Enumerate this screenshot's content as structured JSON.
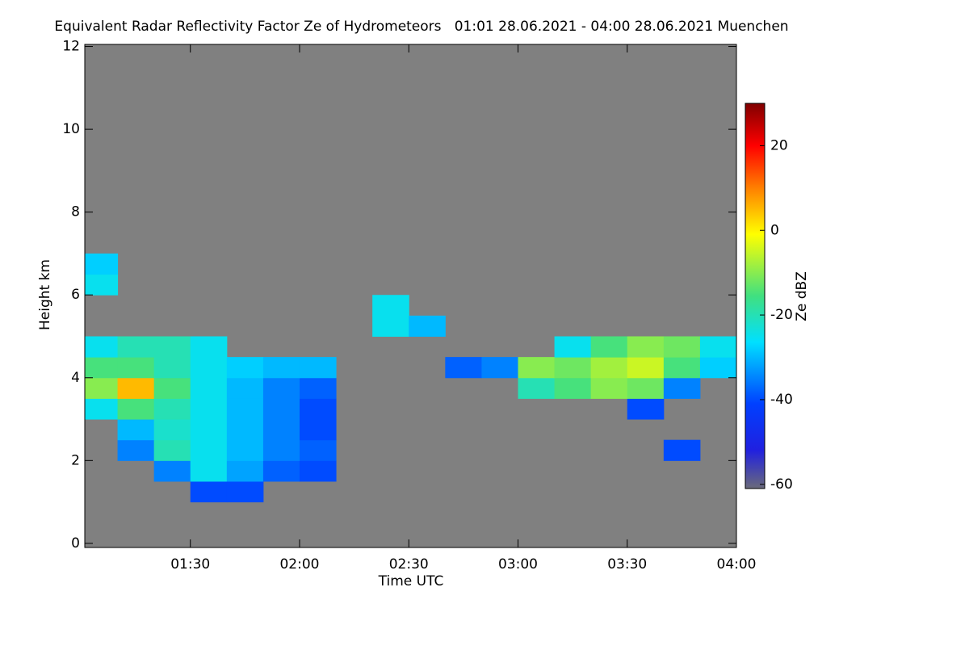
{
  "chart_data": {
    "type": "heatmap",
    "title": "Equivalent Radar Reflectivity Factor Ze of Hydrometeors   01:01 28.06.2021 - 04:00 28.06.2021 Muenchen",
    "xlabel": "Time UTC",
    "ylabel": "Height km",
    "colorbar_label": "Ze dBZ",
    "background_color": "#808080",
    "x": [
      65,
      75,
      85,
      95,
      105,
      115,
      125,
      135,
      145,
      155,
      165,
      175,
      185,
      195,
      205,
      215,
      225,
      235
    ],
    "y": [
      0.25,
      0.75,
      1.25,
      1.75,
      2.25,
      2.75,
      3.25,
      3.75,
      4.25,
      4.75,
      5.25,
      5.75,
      6.25,
      6.75
    ],
    "z": [
      [
        null,
        null,
        null,
        null,
        null,
        null,
        null,
        null,
        null,
        null,
        null,
        null,
        null,
        null,
        null,
        null,
        null,
        null
      ],
      [
        null,
        null,
        null,
        null,
        null,
        null,
        null,
        null,
        null,
        null,
        null,
        null,
        null,
        null,
        null,
        null,
        null,
        null
      ],
      [
        null,
        null,
        null,
        -40,
        -40,
        null,
        null,
        null,
        null,
        null,
        null,
        null,
        null,
        null,
        null,
        null,
        null,
        null
      ],
      [
        null,
        null,
        -35,
        -25,
        -32,
        -38,
        -40,
        null,
        null,
        null,
        null,
        null,
        null,
        null,
        null,
        null,
        null,
        null
      ],
      [
        null,
        -35,
        -20,
        -25,
        -30,
        -35,
        -38,
        null,
        null,
        null,
        null,
        null,
        null,
        null,
        null,
        null,
        -40,
        null
      ],
      [
        null,
        -30,
        -22,
        -25,
        -30,
        -35,
        -40,
        null,
        null,
        null,
        null,
        null,
        null,
        null,
        null,
        null,
        null,
        null
      ],
      [
        -25,
        -15,
        -20,
        -25,
        -30,
        -35,
        -40,
        null,
        null,
        null,
        null,
        null,
        null,
        null,
        null,
        -40,
        null,
        null
      ],
      [
        -10,
        5,
        -15,
        -25,
        -30,
        -35,
        -38,
        null,
        null,
        null,
        null,
        null,
        -20,
        -15,
        -10,
        -12,
        -35,
        null
      ],
      [
        -15,
        -15,
        -20,
        -25,
        -28,
        -30,
        -30,
        null,
        null,
        null,
        -38,
        -35,
        -10,
        -12,
        -8,
        -5,
        -15,
        -28
      ],
      [
        -25,
        -20,
        -20,
        -25,
        null,
        null,
        null,
        null,
        null,
        null,
        null,
        null,
        null,
        -25,
        -15,
        -10,
        -12,
        -25
      ],
      [
        null,
        null,
        null,
        null,
        null,
        null,
        null,
        null,
        -25,
        -30,
        null,
        null,
        null,
        null,
        null,
        null,
        null,
        null
      ],
      [
        null,
        null,
        null,
        null,
        null,
        null,
        null,
        null,
        -25,
        null,
        null,
        null,
        null,
        null,
        null,
        null,
        null,
        null
      ],
      [
        -25,
        null,
        null,
        null,
        null,
        null,
        null,
        null,
        null,
        null,
        null,
        null,
        null,
        null,
        null,
        null,
        null,
        null
      ],
      [
        -28,
        null,
        null,
        null,
        null,
        null,
        null,
        null,
        null,
        null,
        null,
        null,
        null,
        null,
        null,
        null,
        null,
        null
      ]
    ],
    "xlim": [
      61,
      240
    ],
    "xticks": [
      {
        "value": 90,
        "label": "01:30"
      },
      {
        "value": 120,
        "label": "02:00"
      },
      {
        "value": 150,
        "label": "02:30"
      },
      {
        "value": 180,
        "label": "03:00"
      },
      {
        "value": 210,
        "label": "03:30"
      },
      {
        "value": 240,
        "label": "04:00"
      }
    ],
    "ylim": [
      -0.1,
      12.05
    ],
    "yticks": [
      0,
      2,
      4,
      6,
      8,
      10,
      12
    ],
    "zlim": [
      -61,
      30
    ],
    "zticks": [
      -60,
      -40,
      -20,
      0,
      20
    ]
  }
}
